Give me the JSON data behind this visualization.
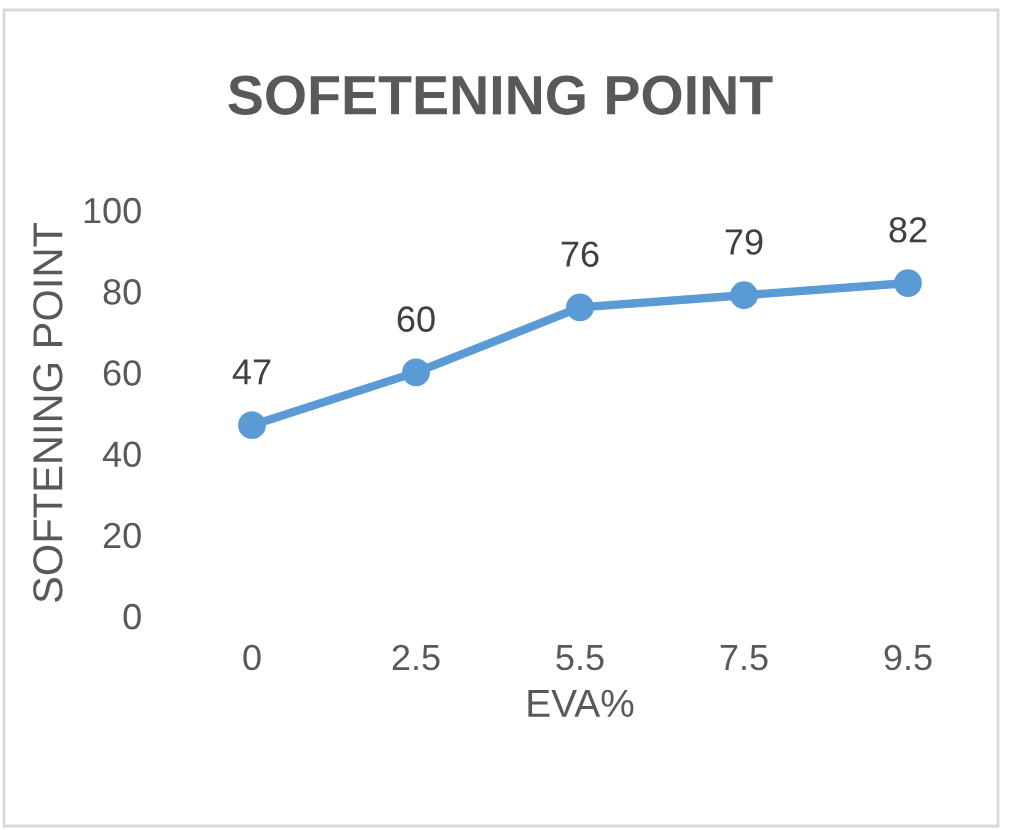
{
  "chart_data": {
    "type": "line",
    "title": "SOFETENING POINT",
    "xlabel": "EVA%",
    "ylabel": "SOFTENING POINT",
    "categories": [
      "0",
      "2.5",
      "5.5",
      "7.5",
      "9.5"
    ],
    "series": [
      {
        "color": "#5b9bd5",
        "values": [
          47,
          60,
          76,
          79,
          82
        ]
      }
    ],
    "ylim": [
      0,
      100
    ],
    "yticks": [
      0,
      20,
      40,
      60,
      80,
      100
    ],
    "data_labels": true,
    "marker": "circle",
    "line_style": "solid",
    "grid": false
  }
}
